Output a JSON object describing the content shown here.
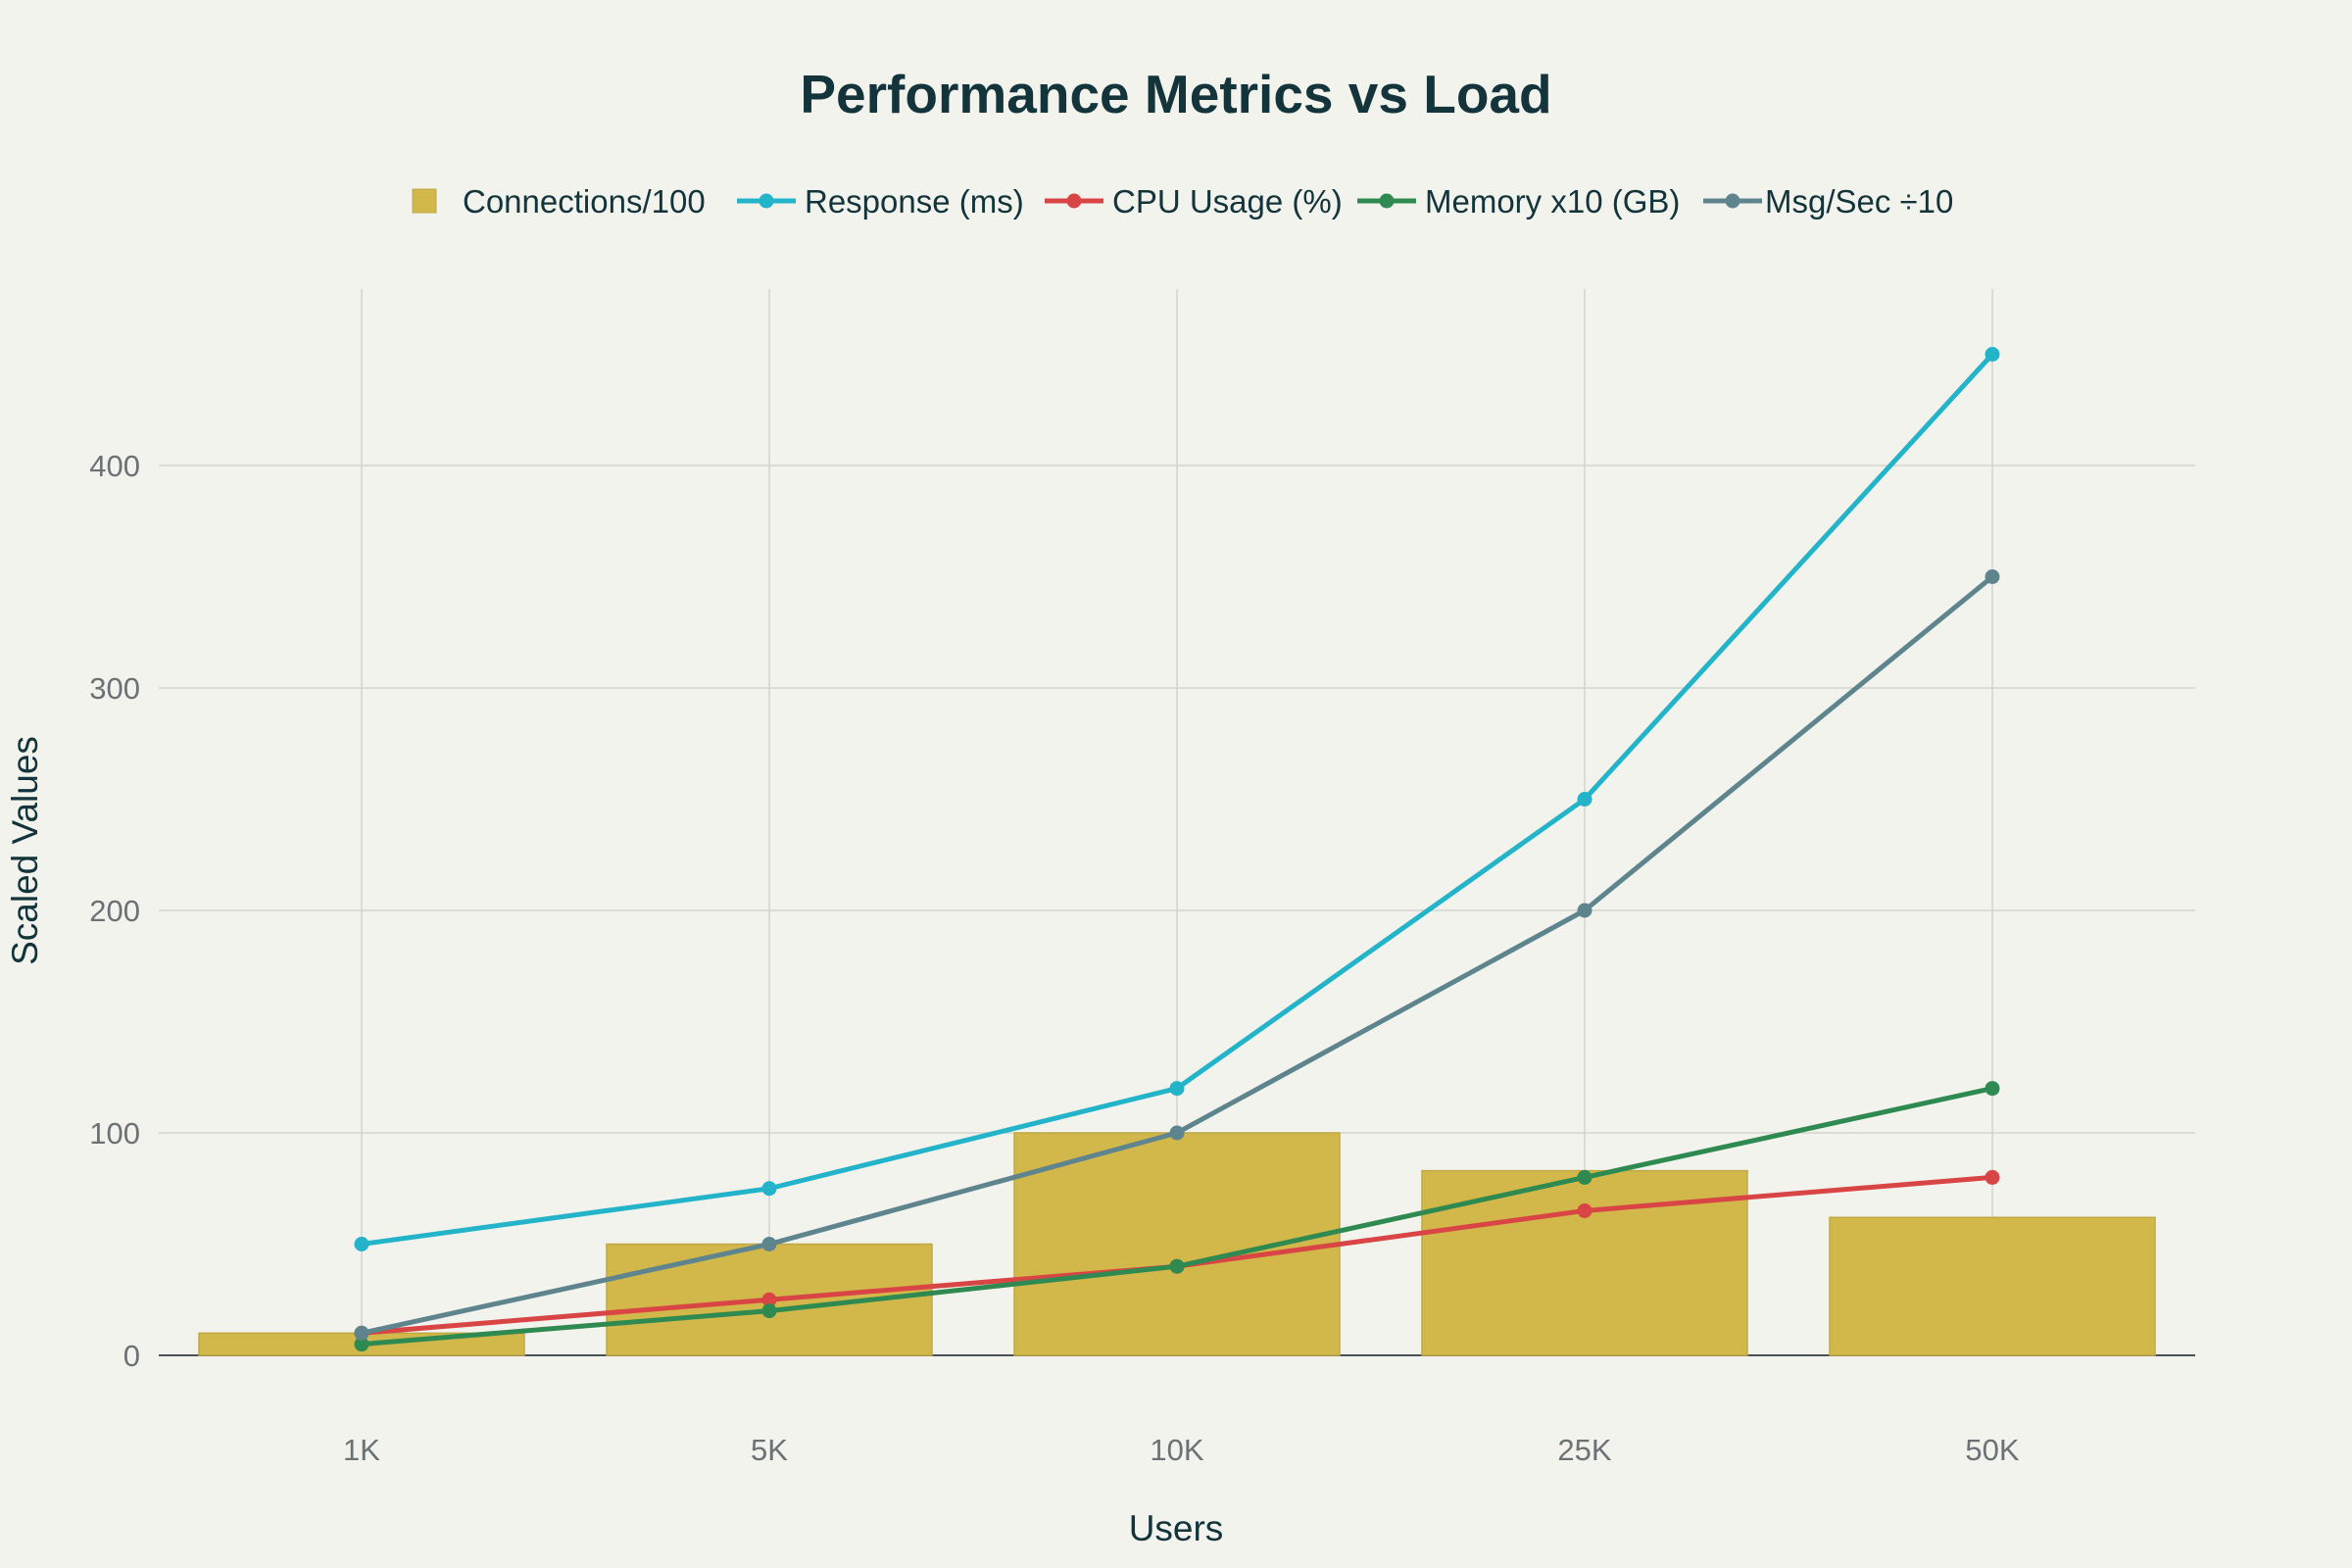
{
  "chart_data": {
    "type": "bar+line",
    "title": "Performance Metrics vs Load",
    "xlabel": "Users",
    "ylabel": "Scaled Values",
    "categories": [
      "1K",
      "5K",
      "10K",
      "25K",
      "50K"
    ],
    "ylim": [
      0,
      480
    ],
    "yticks": [
      0,
      100,
      200,
      300,
      400
    ],
    "grid": true,
    "legend_position": "top-center",
    "series": [
      {
        "name": "Connections/100",
        "type": "bar",
        "color": "#d2b84a",
        "values": [
          10,
          50,
          100,
          83,
          62
        ]
      },
      {
        "name": "Response (ms)",
        "type": "line",
        "color": "#23b4c9",
        "values": [
          50,
          75,
          120,
          250,
          450
        ]
      },
      {
        "name": "CPU Usage (%)",
        "type": "line",
        "color": "#d94545",
        "values": [
          10,
          25,
          40,
          65,
          80
        ]
      },
      {
        "name": "Memory x10 (GB)",
        "type": "line",
        "color": "#2e8a50",
        "values": [
          5,
          20,
          40,
          80,
          120
        ]
      },
      {
        "name": "Msg/Sec ÷10",
        "type": "line",
        "color": "#5e858e",
        "values": [
          10,
          50,
          100,
          200,
          350
        ]
      }
    ]
  }
}
